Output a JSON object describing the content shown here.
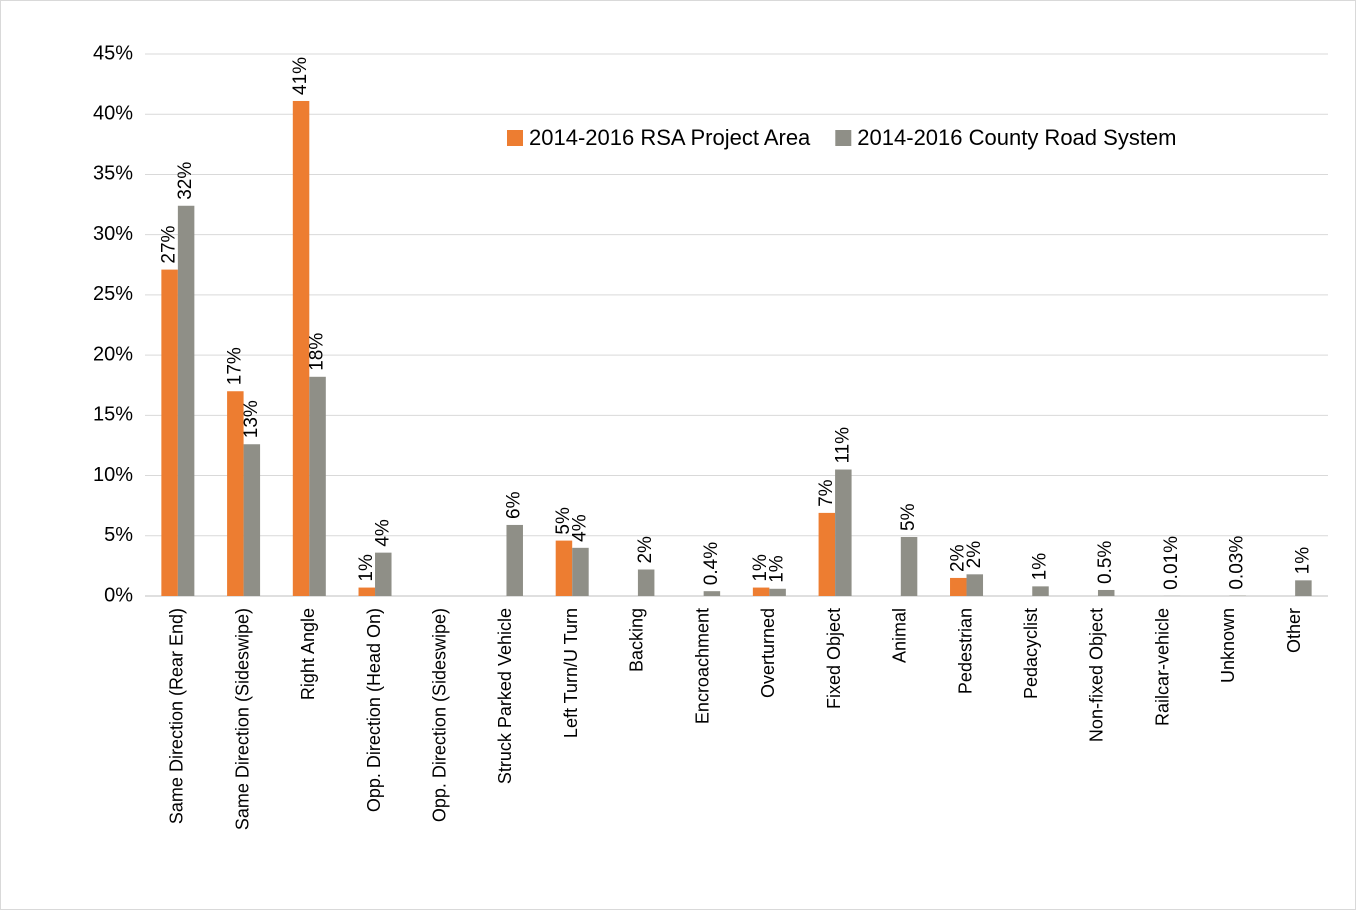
{
  "chart_data": {
    "type": "bar",
    "categories": [
      "Same Direction (Rear End)",
      "Same Direction (Sideswipe)",
      "Right Angle",
      "Opp. Direction (Head On)",
      "Opp. Direction (Sideswipe)",
      "Struck Parked Vehicle",
      "Left Turn/U Turn",
      "Backing",
      "Encroachment",
      "Overturned",
      "Fixed Object",
      "Animal",
      "Pedestrian",
      "Pedacyclist",
      "Non-fixed Object",
      "Railcar-vehicle",
      "Unknown",
      "Other"
    ],
    "series": [
      {
        "name": "2014-2016 RSA Project Area",
        "color": "#ed7d31",
        "values": [
          27.1,
          17.0,
          41.1,
          0.7,
          null,
          null,
          4.6,
          null,
          null,
          0.7,
          6.9,
          null,
          1.5,
          null,
          null,
          null,
          null,
          null
        ],
        "value_labels": [
          "27%",
          "17%",
          "41%",
          "1%",
          null,
          null,
          "5%",
          null,
          null,
          "1%",
          "7%",
          null,
          "2%",
          null,
          null,
          null,
          null,
          null
        ]
      },
      {
        "name": "2014-2016 County Road System",
        "color": "#8f8f87",
        "values": [
          32.4,
          12.6,
          18.2,
          3.6,
          null,
          5.9,
          4.0,
          2.2,
          0.4,
          0.6,
          10.5,
          4.9,
          1.8,
          0.8,
          0.5,
          0.01,
          0.03,
          1.3
        ],
        "value_labels": [
          "32%",
          "13%",
          "18%",
          "4%",
          null,
          "6%",
          "4%",
          "2%",
          "0.4%",
          "1%",
          "11%",
          "5%",
          "2%",
          "1%",
          "0.5%",
          "0.01%",
          "0.03%",
          "1%"
        ]
      }
    ],
    "ylim": [
      0,
      45
    ],
    "yticks": [
      {
        "value": 0,
        "label": "0%"
      },
      {
        "value": 5,
        "label": "5%"
      },
      {
        "value": 10,
        "label": "10%"
      },
      {
        "value": 15,
        "label": "15%"
      },
      {
        "value": 20,
        "label": "20%"
      },
      {
        "value": 25,
        "label": "25%"
      },
      {
        "value": 30,
        "label": "30%"
      },
      {
        "value": 35,
        "label": "35%"
      },
      {
        "value": 40,
        "label": "40%"
      },
      {
        "value": 45,
        "label": "45%"
      }
    ],
    "grid": true,
    "legend": "top-right"
  }
}
